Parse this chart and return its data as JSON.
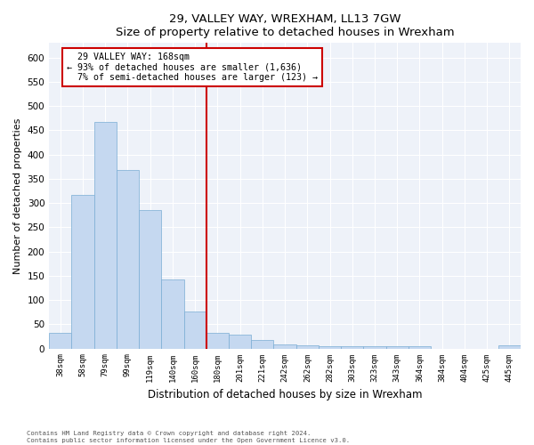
{
  "title": "29, VALLEY WAY, WREXHAM, LL13 7GW",
  "subtitle": "Size of property relative to detached houses in Wrexham",
  "xlabel": "Distribution of detached houses by size in Wrexham",
  "ylabel": "Number of detached properties",
  "bar_labels": [
    "38sqm",
    "58sqm",
    "79sqm",
    "99sqm",
    "119sqm",
    "140sqm",
    "160sqm",
    "180sqm",
    "201sqm",
    "221sqm",
    "242sqm",
    "262sqm",
    "282sqm",
    "303sqm",
    "323sqm",
    "343sqm",
    "364sqm",
    "384sqm",
    "404sqm",
    "425sqm",
    "445sqm"
  ],
  "bar_values": [
    32,
    316,
    468,
    369,
    285,
    143,
    76,
    32,
    29,
    17,
    9,
    6,
    5,
    5,
    5,
    5,
    5,
    0,
    0,
    0,
    6
  ],
  "bar_color": "#c5d8f0",
  "bar_edge_color": "#7aadd4",
  "property_label": "29 VALLEY WAY: 168sqm",
  "pct_smaller": "93% of detached houses are smaller (1,636)",
  "pct_larger": "7% of semi-detached houses are larger (123)",
  "vline_color": "#cc0000",
  "vline_x_index": 6.5,
  "annotation_box_color": "#cc0000",
  "ylim": [
    0,
    630
  ],
  "yticks": [
    0,
    50,
    100,
    150,
    200,
    250,
    300,
    350,
    400,
    450,
    500,
    550,
    600
  ],
  "footer_line1": "Contains HM Land Registry data © Crown copyright and database right 2024.",
  "footer_line2": "Contains public sector information licensed under the Open Government Licence v3.0.",
  "plot_bg_color": "#eef2f9"
}
